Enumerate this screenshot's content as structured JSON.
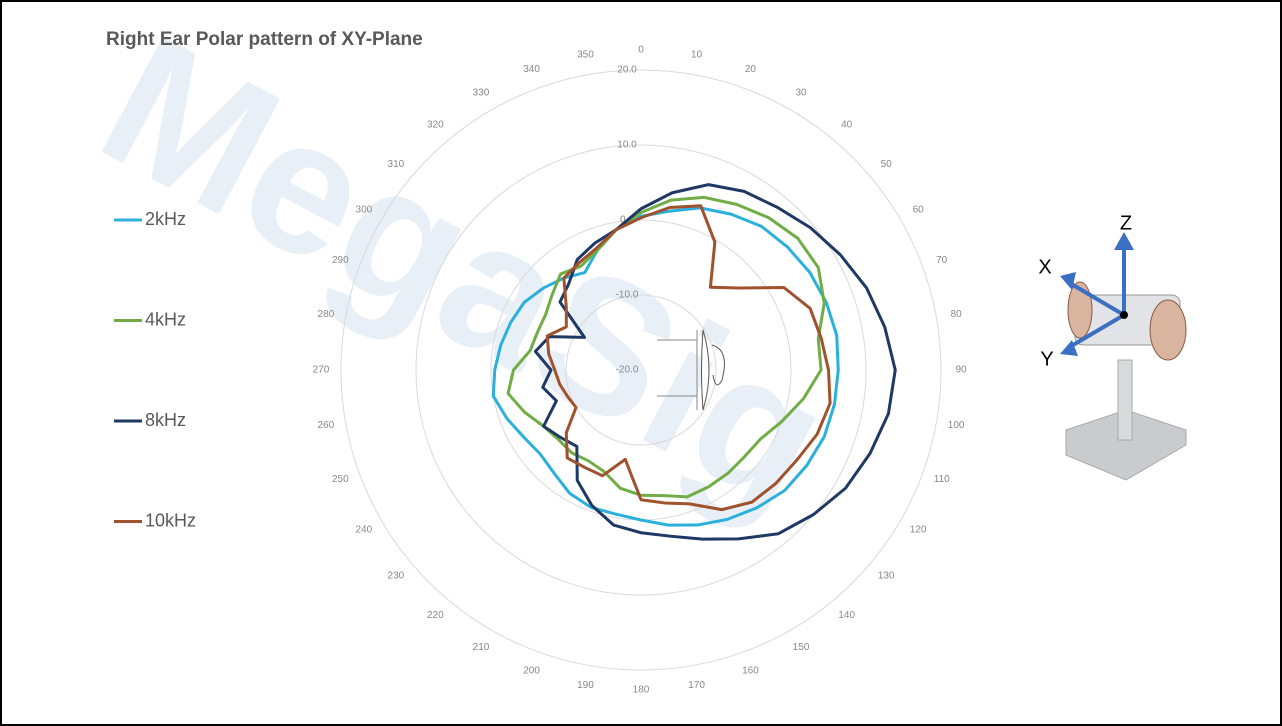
{
  "chart_data": {
    "type": "polar",
    "title": "Right Ear Polar pattern of XY-Plane",
    "x": [
      0,
      10,
      20,
      30,
      40,
      50,
      60,
      70,
      80,
      90,
      100,
      110,
      120,
      130,
      140,
      150,
      160,
      170,
      180,
      190,
      200,
      210,
      220,
      230,
      240,
      250,
      260,
      270,
      280,
      290,
      300,
      310,
      320,
      330,
      340,
      350
    ],
    "ylim": [
      -20,
      20
    ],
    "yticks": [
      {
        "value": -20,
        "label": "-20.0"
      },
      {
        "value": -10,
        "label": "-10.0"
      },
      {
        "value": 0,
        "label": "0.0"
      },
      {
        "value": 10,
        "label": "10.0"
      },
      {
        "value": 20,
        "label": "20.0"
      }
    ],
    "grid": true,
    "legend": "left",
    "series": [
      {
        "name": "2kHz",
        "color": "#2bb0dc",
        "values": [
          0.5,
          1.5,
          3,
          4,
          5,
          5.5,
          6,
          6.3,
          6.5,
          6.3,
          6.2,
          6,
          5.5,
          5,
          4,
          3,
          2,
          1,
          0,
          -0.5,
          -0.5,
          -1,
          -2,
          -2.5,
          -2,
          -1,
          0,
          -0.5,
          -1,
          -1.5,
          -2,
          -3,
          -4,
          -5,
          -3,
          -1
        ]
      },
      {
        "name": "4kHz",
        "color": "#70ad47",
        "values": [
          1,
          3,
          4.5,
          5.5,
          6.5,
          7.3,
          7.3,
          6,
          4,
          4,
          2,
          0,
          -1.6,
          -2,
          -2,
          -2,
          -2,
          -3,
          -3.3,
          -4,
          -5.6,
          -6,
          -5.6,
          -5.6,
          -5,
          -3.5,
          -2,
          -3,
          -5,
          -5.3,
          -5.3,
          -4.5,
          -3.3,
          -4,
          -3,
          -1
        ]
      },
      {
        "name": "8kHz",
        "color": "#1f3864",
        "values": [
          1.5,
          4,
          6.3,
          7.5,
          8.3,
          9.5,
          10.7,
          12,
          13,
          13.9,
          13.5,
          12.5,
          11.5,
          10,
          8.5,
          6,
          4,
          2.5,
          1.7,
          1,
          -0.8,
          -3,
          -6.7,
          -6,
          -5,
          -8,
          -6.7,
          -8,
          -5.7,
          -7,
          -11.3,
          -5.9,
          -5,
          -3,
          -2,
          -1
        ]
      },
      {
        "name": "10kHz",
        "color": "#a0522d",
        "values": [
          0.3,
          2,
          3.3,
          -0.3,
          -5.6,
          -3,
          2,
          4,
          4.4,
          5,
          5.6,
          5,
          4,
          3.5,
          3,
          1.5,
          -1,
          -2,
          -2.7,
          -7.9,
          -5,
          -5,
          -4.7,
          -7,
          -10,
          -9.6,
          -9,
          -8.5,
          -7.5,
          -6.7,
          -8.5,
          -7,
          -4,
          -3.5,
          -2.7,
          -1
        ]
      }
    ],
    "watermark": "MegaSig",
    "axis_labels": {
      "x": "X",
      "y": "Y",
      "z": "Z"
    }
  }
}
